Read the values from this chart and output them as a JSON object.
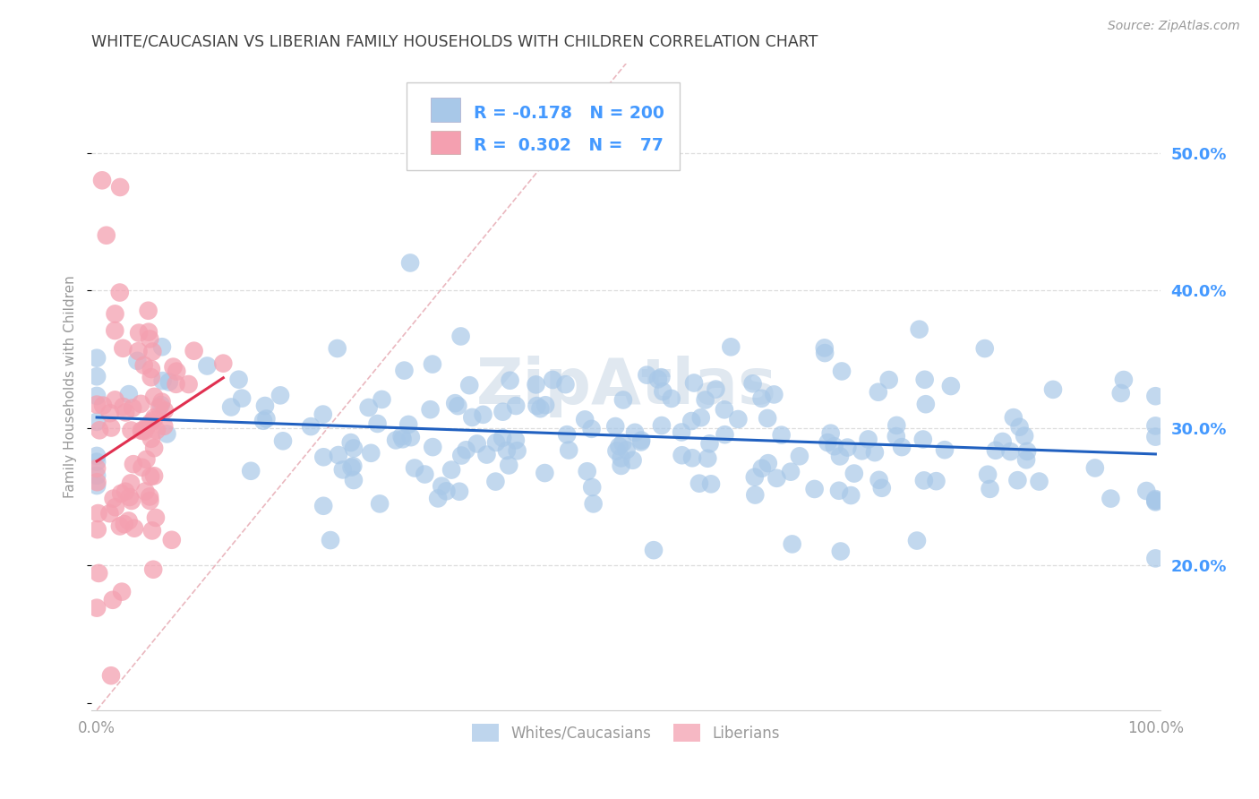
{
  "title": "WHITE/CAUCASIAN VS LIBERIAN FAMILY HOUSEHOLDS WITH CHILDREN CORRELATION CHART",
  "source": "Source: ZipAtlas.com",
  "ylabel": "Family Households with Children",
  "blue_R": -0.178,
  "blue_N": 200,
  "pink_R": 0.302,
  "pink_N": 77,
  "yticks_right": [
    0.2,
    0.3,
    0.4,
    0.5
  ],
  "ytick_labels_right": [
    "20.0%",
    "30.0%",
    "40.0%",
    "50.0%"
  ],
  "blue_color": "#a8c8e8",
  "pink_color": "#f4a0b0",
  "blue_line_color": "#2060c0",
  "pink_line_color": "#e03050",
  "diagonal_color": "#e8b0b8",
  "grid_color": "#dddddd",
  "title_color": "#404040",
  "source_color": "#999999",
  "axis_color": "#999999",
  "tick_color": "#4499ff",
  "background_color": "#ffffff",
  "watermark_color": "#e0e8f0",
  "legend_border_color": "#cccccc"
}
